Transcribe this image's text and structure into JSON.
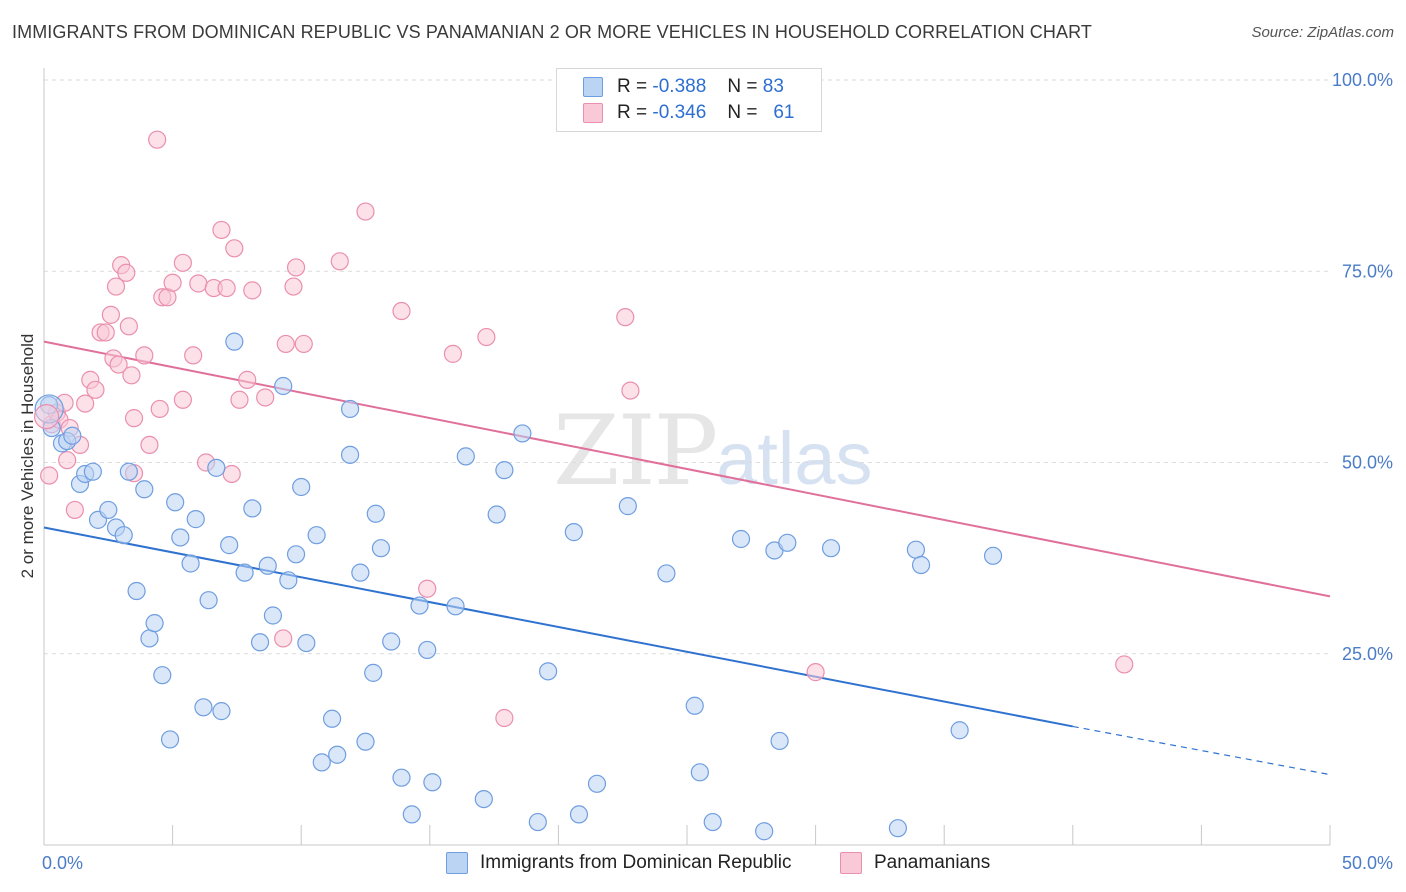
{
  "title": "IMMIGRANTS FROM DOMINICAN REPUBLIC VS PANAMANIAN 2 OR MORE VEHICLES IN HOUSEHOLD CORRELATION CHART",
  "source": "Source: ZipAtlas.com",
  "watermark": {
    "zip": "ZIP",
    "atlas": "atlas"
  },
  "legend": {
    "rows": [
      {
        "r_label": "R =",
        "r_value": "-0.388",
        "n_label": "N =",
        "n_value": "83",
        "color": "#a9c8f0",
        "border": "#6f9ee0"
      },
      {
        "r_label": "R =",
        "r_value": "-0.346",
        "n_label": "N =",
        "n_value": "61",
        "color": "#f8c3d3",
        "border": "#ea8fae"
      }
    ]
  },
  "bottom_legend": [
    "Immigrants from Dominican Republic",
    "Panamanians"
  ],
  "chart_data": {
    "type": "scatter",
    "title": "IMMIGRANTS FROM DOMINICAN REPUBLIC VS PANAMANIAN 2 OR MORE VEHICLES IN HOUSEHOLD CORRELATION CHART",
    "xlabel": "",
    "ylabel": "2 or more Vehicles in Household",
    "xlim": [
      0,
      50
    ],
    "ylim": [
      0,
      100
    ],
    "x_tick_labels": [
      "0.0%",
      "50.0%"
    ],
    "y_tick_labels": [
      "25.0%",
      "50.0%",
      "75.0%",
      "100.0%"
    ],
    "y_ticks": [
      25,
      50,
      75,
      100
    ],
    "grid": true,
    "legend_position": "top-center",
    "series": [
      {
        "name": "Immigrants from Dominican Republic",
        "color": "#6f9ee0",
        "fill": "#bcd4f4",
        "line_color": "#2f72d0",
        "trend": {
          "x0": 0,
          "y0": 41.5,
          "x1": 40,
          "y1": 15.5,
          "dash_to_x": 50,
          "dash_to_y": 9.2
        },
        "points": [
          [
            0.2,
            57.5
          ],
          [
            0.3,
            54.5
          ],
          [
            0.7,
            52.5
          ],
          [
            0.9,
            52.8
          ],
          [
            1.1,
            53.5
          ],
          [
            1.4,
            47.2
          ],
          [
            1.6,
            48.5
          ],
          [
            1.9,
            48.8
          ],
          [
            2.1,
            42.5
          ],
          [
            2.5,
            43.8
          ],
          [
            2.8,
            41.5
          ],
          [
            3.1,
            40.5
          ],
          [
            3.3,
            48.8
          ],
          [
            3.6,
            33.2
          ],
          [
            3.9,
            46.5
          ],
          [
            4.1,
            27.0
          ],
          [
            4.3,
            29.0
          ],
          [
            4.6,
            22.2
          ],
          [
            4.9,
            13.8
          ],
          [
            5.1,
            44.8
          ],
          [
            5.3,
            40.2
          ],
          [
            5.7,
            36.8
          ],
          [
            5.9,
            42.6
          ],
          [
            6.2,
            18.0
          ],
          [
            6.4,
            32.0
          ],
          [
            6.7,
            49.3
          ],
          [
            6.9,
            17.5
          ],
          [
            7.2,
            39.2
          ],
          [
            7.4,
            65.8
          ],
          [
            7.8,
            35.6
          ],
          [
            8.1,
            44.0
          ],
          [
            8.4,
            26.5
          ],
          [
            8.7,
            36.5
          ],
          [
            8.9,
            30.0
          ],
          [
            9.3,
            60.0
          ],
          [
            9.5,
            34.6
          ],
          [
            9.8,
            38.0
          ],
          [
            10.0,
            46.8
          ],
          [
            10.2,
            26.4
          ],
          [
            10.6,
            40.5
          ],
          [
            10.8,
            10.8
          ],
          [
            11.2,
            16.5
          ],
          [
            11.4,
            11.8
          ],
          [
            11.9,
            51.0
          ],
          [
            11.9,
            57.0
          ],
          [
            12.3,
            35.6
          ],
          [
            12.5,
            13.5
          ],
          [
            12.8,
            22.5
          ],
          [
            12.9,
            43.3
          ],
          [
            13.1,
            38.8
          ],
          [
            13.5,
            26.6
          ],
          [
            13.9,
            8.8
          ],
          [
            14.3,
            4.0
          ],
          [
            14.6,
            31.3
          ],
          [
            14.9,
            25.5
          ],
          [
            15.1,
            8.2
          ],
          [
            16.0,
            31.2
          ],
          [
            16.4,
            50.8
          ],
          [
            17.1,
            6.0
          ],
          [
            17.6,
            43.2
          ],
          [
            17.9,
            49.0
          ],
          [
            18.6,
            53.8
          ],
          [
            19.2,
            3.0
          ],
          [
            19.6,
            22.7
          ],
          [
            20.6,
            40.9
          ],
          [
            20.8,
            4.0
          ],
          [
            21.5,
            8.0
          ],
          [
            22.7,
            44.3
          ],
          [
            24.2,
            35.5
          ],
          [
            25.3,
            18.2
          ],
          [
            25.5,
            9.5
          ],
          [
            26.0,
            3.0
          ],
          [
            27.1,
            40.0
          ],
          [
            28.0,
            1.8
          ],
          [
            28.4,
            38.5
          ],
          [
            28.6,
            13.6
          ],
          [
            28.9,
            39.5
          ],
          [
            30.6,
            38.8
          ],
          [
            33.2,
            2.2
          ],
          [
            33.9,
            38.6
          ],
          [
            34.1,
            36.6
          ],
          [
            35.6,
            15.0
          ],
          [
            36.9,
            37.8
          ]
        ]
      },
      {
        "name": "Panamanians",
        "color": "#ea8fae",
        "fill": "#f9c9d7",
        "line_color": "#e0709a",
        "trend": {
          "x0": 0,
          "y0": 65.8,
          "x1": 50,
          "y1": 32.5
        },
        "points": [
          [
            0.2,
            48.3
          ],
          [
            0.3,
            55.0
          ],
          [
            0.5,
            56.5
          ],
          [
            0.6,
            55.6
          ],
          [
            0.8,
            57.8
          ],
          [
            0.9,
            50.3
          ],
          [
            1.0,
            54.5
          ],
          [
            1.2,
            43.8
          ],
          [
            1.4,
            52.3
          ],
          [
            1.6,
            57.7
          ],
          [
            1.8,
            60.8
          ],
          [
            2.0,
            59.5
          ],
          [
            2.2,
            67.0
          ],
          [
            2.4,
            67.0
          ],
          [
            2.6,
            69.3
          ],
          [
            2.7,
            63.6
          ],
          [
            2.8,
            73.0
          ],
          [
            2.9,
            62.8
          ],
          [
            3.0,
            75.8
          ],
          [
            3.2,
            74.8
          ],
          [
            3.3,
            67.8
          ],
          [
            3.4,
            61.4
          ],
          [
            3.5,
            48.6
          ],
          [
            3.5,
            55.8
          ],
          [
            3.9,
            64.0
          ],
          [
            4.1,
            52.3
          ],
          [
            4.4,
            92.2
          ],
          [
            4.5,
            57.0
          ],
          [
            4.6,
            71.6
          ],
          [
            4.8,
            71.6
          ],
          [
            5.0,
            73.5
          ],
          [
            5.4,
            58.2
          ],
          [
            5.4,
            76.1
          ],
          [
            5.8,
            64.0
          ],
          [
            6.0,
            73.4
          ],
          [
            6.3,
            50.0
          ],
          [
            6.6,
            72.8
          ],
          [
            6.9,
            80.4
          ],
          [
            7.1,
            72.8
          ],
          [
            7.3,
            48.5
          ],
          [
            7.4,
            78.0
          ],
          [
            7.6,
            58.2
          ],
          [
            7.9,
            60.8
          ],
          [
            8.1,
            72.5
          ],
          [
            8.6,
            58.5
          ],
          [
            9.3,
            27.0
          ],
          [
            9.4,
            65.5
          ],
          [
            9.7,
            73.0
          ],
          [
            9.8,
            75.5
          ],
          [
            10.1,
            65.5
          ],
          [
            11.5,
            76.3
          ],
          [
            12.5,
            82.8
          ],
          [
            13.9,
            69.8
          ],
          [
            14.9,
            33.5
          ],
          [
            15.9,
            64.2
          ],
          [
            17.2,
            66.4
          ],
          [
            17.9,
            16.6
          ],
          [
            22.6,
            69.0
          ],
          [
            22.8,
            59.4
          ],
          [
            30.0,
            22.6
          ],
          [
            42.0,
            23.6
          ]
        ]
      }
    ]
  }
}
